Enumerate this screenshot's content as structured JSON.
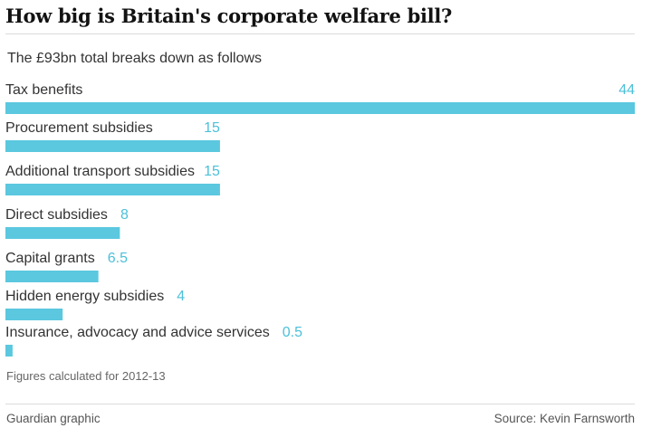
{
  "header": {
    "title": "How big is Britain's corporate welfare bill?"
  },
  "chart_data": {
    "type": "bar",
    "orientation": "horizontal",
    "subtitle": "The £93bn total breaks down as follows",
    "categories": [
      "Tax benefits",
      "Procurement subsidies",
      "Additional transport subsidies",
      "Direct subsidies",
      "Capital grants",
      "Hidden energy subsidies",
      "Insurance, advocacy and advice services"
    ],
    "values": [
      44,
      15,
      15,
      8,
      6.5,
      4,
      0.5
    ],
    "value_labels": [
      "44",
      "15",
      "15",
      "8",
      "6.5",
      "4",
      "0.5"
    ],
    "xlim": [
      0,
      44
    ],
    "grid": false,
    "legend": "none",
    "bar_color": "#5bc8df",
    "value_label_color": "#4cc0d9"
  },
  "footer": {
    "footnote": "Figures calculated for 2012-13",
    "credit": "Guardian graphic",
    "source": "Source: Kevin Farnsworth"
  }
}
